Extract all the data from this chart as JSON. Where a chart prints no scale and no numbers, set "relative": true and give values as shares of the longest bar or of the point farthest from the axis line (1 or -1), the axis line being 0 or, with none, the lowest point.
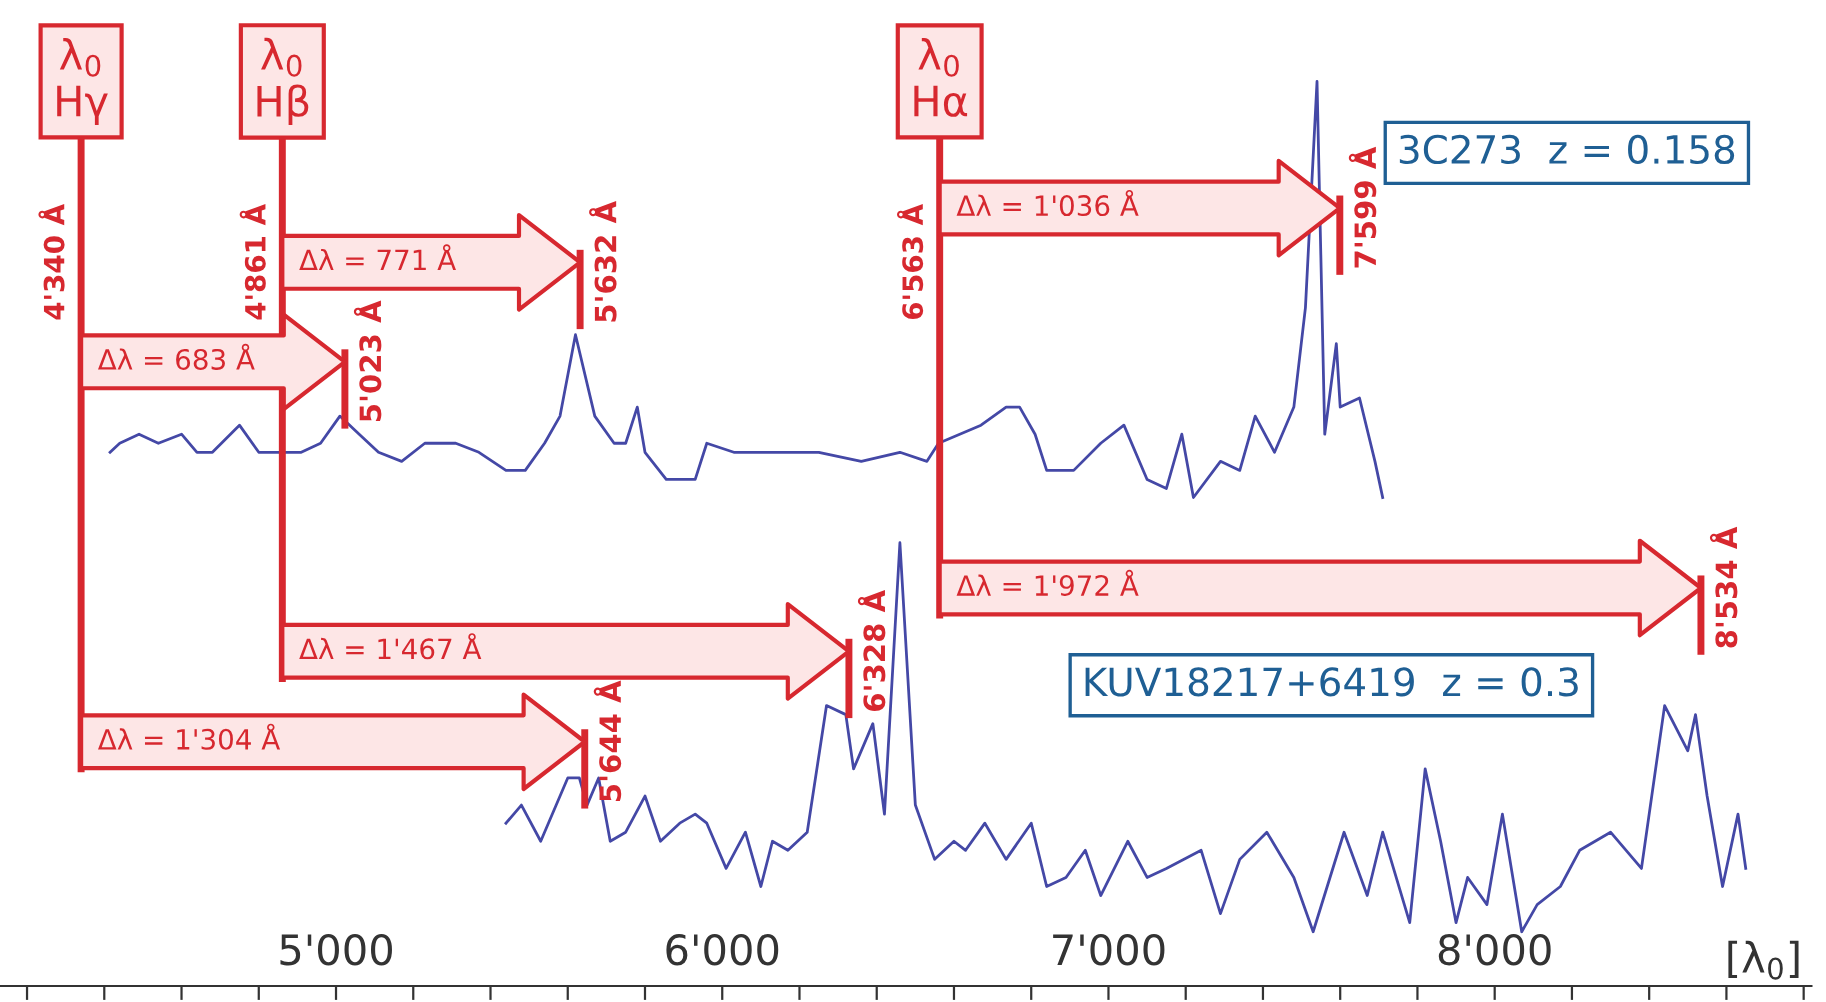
{
  "chart_data": {
    "type": "line",
    "relative": true,
    "xlabel": "[λ$_{0}$]",
    "xlim": [
      4130,
      8820
    ],
    "xticks": [
      {
        "value": 4200,
        "label": null
      },
      {
        "value": 4400,
        "label": null
      },
      {
        "value": 4600,
        "label": null
      },
      {
        "value": 4800,
        "label": null
      },
      {
        "value": 5000,
        "label": "5'000"
      },
      {
        "value": 5200,
        "label": null
      },
      {
        "value": 5400,
        "label": null
      },
      {
        "value": 5600,
        "label": null
      },
      {
        "value": 5800,
        "label": null
      },
      {
        "value": 6000,
        "label": "6'000"
      },
      {
        "value": 6200,
        "label": null
      },
      {
        "value": 6400,
        "label": null
      },
      {
        "value": 6600,
        "label": null
      },
      {
        "value": 6800,
        "label": null
      },
      {
        "value": 7000,
        "label": "7'000"
      },
      {
        "value": 7200,
        "label": null
      },
      {
        "value": 7400,
        "label": null
      },
      {
        "value": 7600,
        "label": null
      },
      {
        "value": 7800,
        "label": null
      },
      {
        "value": 8000,
        "label": "8'000"
      },
      {
        "value": 8200,
        "label": null
      },
      {
        "value": 8400,
        "label": null
      },
      {
        "value": 8600,
        "label": null
      },
      {
        "value": 8800,
        "label": null
      }
    ],
    "series": [
      {
        "name": "3C273  z = 0.158",
        "color": "#4448a6",
        "x": [
          4415,
          4440,
          4490,
          4540,
          4600,
          4640,
          4680,
          4750,
          4800,
          4855,
          4910,
          4960,
          5010,
          5060,
          5110,
          5170,
          5230,
          5310,
          5370,
          5440,
          5490,
          5540,
          5580,
          5620,
          5670,
          5720,
          5750,
          5780,
          5800,
          5855,
          5930,
          5960,
          6030,
          6080,
          6150,
          6250,
          6360,
          6460,
          6530,
          6560,
          6670,
          6735,
          6770,
          6810,
          6840,
          6910,
          6980,
          7040,
          7100,
          7150,
          7190,
          7220,
          7290,
          7340,
          7380,
          7430,
          7480,
          7510,
          7540,
          7560,
          7590,
          7600,
          7650,
          7690,
          7710
        ],
        "values": [
          0.59,
          0.6,
          0.61,
          0.6,
          0.61,
          0.59,
          0.59,
          0.62,
          0.59,
          0.59,
          0.59,
          0.6,
          0.63,
          0.61,
          0.59,
          0.58,
          0.6,
          0.6,
          0.59,
          0.57,
          0.57,
          0.6,
          0.63,
          0.72,
          0.63,
          0.6,
          0.6,
          0.64,
          0.59,
          0.56,
          0.56,
          0.6,
          0.59,
          0.59,
          0.59,
          0.59,
          0.58,
          0.59,
          0.58,
          0.6,
          0.62,
          0.64,
          0.64,
          0.61,
          0.57,
          0.57,
          0.6,
          0.62,
          0.56,
          0.55,
          0.61,
          0.54,
          0.58,
          0.57,
          0.63,
          0.59,
          0.64,
          0.75,
          1.0,
          0.61,
          0.71,
          0.64,
          0.65,
          0.58,
          0.54
        ]
      },
      {
        "name": "KUV18217+6419  z = 0.3",
        "color": "#4448a6",
        "x": [
          5440,
          5480,
          5530,
          5600,
          5630,
          5650,
          5680,
          5710,
          5750,
          5800,
          5840,
          5890,
          5930,
          5960,
          6010,
          6060,
          6100,
          6130,
          6170,
          6220,
          6270,
          6320,
          6340,
          6390,
          6420,
          6460,
          6500,
          6550,
          6600,
          6630,
          6680,
          6735,
          6800,
          6840,
          6890,
          6940,
          6980,
          7050,
          7100,
          7150,
          7240,
          7290,
          7340,
          7410,
          7480,
          7530,
          7610,
          7670,
          7710,
          7780,
          7820,
          7860,
          7900,
          7930,
          7980,
          8020,
          8070,
          8110,
          8170,
          8220,
          8300,
          8380,
          8440,
          8500,
          8520,
          8550,
          8590,
          8630,
          8650
        ],
        "values": [
          0.18,
          0.2,
          0.16,
          0.23,
          0.23,
          0.2,
          0.23,
          0.16,
          0.17,
          0.21,
          0.16,
          0.18,
          0.19,
          0.18,
          0.13,
          0.17,
          0.11,
          0.16,
          0.15,
          0.17,
          0.31,
          0.3,
          0.24,
          0.29,
          0.19,
          0.49,
          0.2,
          0.14,
          0.16,
          0.15,
          0.18,
          0.14,
          0.18,
          0.11,
          0.12,
          0.15,
          0.1,
          0.16,
          0.12,
          0.13,
          0.15,
          0.08,
          0.14,
          0.17,
          0.12,
          0.06,
          0.17,
          0.1,
          0.17,
          0.07,
          0.24,
          0.16,
          0.07,
          0.12,
          0.09,
          0.19,
          0.06,
          0.09,
          0.11,
          0.15,
          0.17,
          0.13,
          0.31,
          0.26,
          0.3,
          0.21,
          0.11,
          0.19,
          0.13
        ]
      }
    ],
    "ref_lines": [
      {
        "axis": "x",
        "value": 4340,
        "label": "4'340 Å",
        "color": "#d7282f"
      },
      {
        "axis": "x",
        "value": 4861,
        "label": "4'861 Å",
        "color": "#d7282f"
      },
      {
        "axis": "x",
        "value": 6563,
        "label": "6'563 Å",
        "color": "#d7282f"
      },
      {
        "axis": "x",
        "value": 5023,
        "label": "5'023 Å",
        "color": "#d7282f"
      },
      {
        "axis": "x",
        "value": 5632,
        "label": "5'632 Å",
        "color": "#d7282f"
      },
      {
        "axis": "x",
        "value": 7599,
        "label": "7'599 Å",
        "color": "#d7282f"
      },
      {
        "axis": "x",
        "value": 5644,
        "label": "5'644 Å",
        "color": "#d7282f"
      },
      {
        "axis": "x",
        "value": 6328,
        "label": "6'328 Å",
        "color": "#d7282f"
      },
      {
        "axis": "x",
        "value": 8534,
        "label": "8'534 Å",
        "color": "#d7282f"
      }
    ],
    "annotations": [
      "λ$_{0}$\nHγ",
      "λ$_{0}$\nHβ",
      "λ$_{0}$\nHα",
      "Δλ = 683 Å",
      "Δλ = 771 Å",
      "Δλ = 1'036 Å",
      "Δλ = 1'304 Å",
      "Δλ = 1'467 Å",
      "Δλ = 1'972 Å"
    ]
  }
}
